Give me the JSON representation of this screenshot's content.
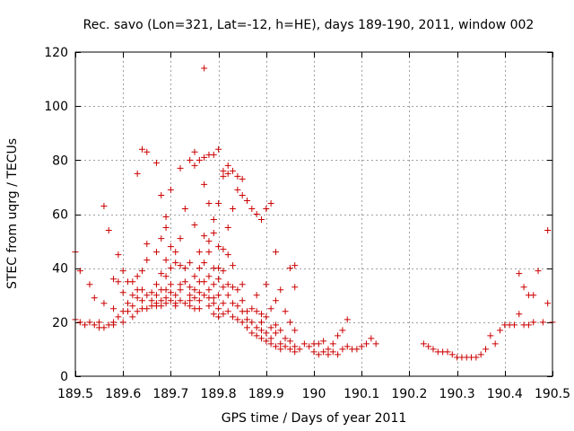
{
  "chart_data": {
    "type": "scatter",
    "title": "Rec. savo (Lon=321, Lat=-12, h=HE), days 189-190, 2011, window 002",
    "xlabel": "GPS time / Days of year 2011",
    "ylabel": "STEC from uqrg / TECUs",
    "xlim": [
      189.5,
      190.5
    ],
    "ylim": [
      0,
      120
    ],
    "xticks": [
      189.5,
      189.6,
      189.7,
      189.8,
      189.9,
      190.0,
      190.1,
      190.2,
      190.3,
      190.4,
      190.5
    ],
    "xtick_labels": [
      "189.5",
      "189.6",
      "189.7",
      "189.8",
      "189.9",
      "190",
      "190.1",
      "190.2",
      "190.3",
      "190.4",
      "190.5"
    ],
    "yticks": [
      0,
      20,
      40,
      60,
      80,
      100,
      120
    ],
    "ytick_labels": [
      "0",
      "20",
      "40",
      "60",
      "80",
      "100",
      "120"
    ],
    "grid": true,
    "marker": "+",
    "color": "#cc0000",
    "series": [
      {
        "name": "STEC",
        "points": [
          [
            189.5,
            46
          ],
          [
            189.5,
            21
          ],
          [
            189.51,
            20
          ],
          [
            189.51,
            39
          ],
          [
            189.52,
            19
          ],
          [
            189.53,
            34
          ],
          [
            189.53,
            20
          ],
          [
            189.54,
            19
          ],
          [
            189.54,
            29
          ],
          [
            189.55,
            18
          ],
          [
            189.55,
            20
          ],
          [
            189.56,
            63
          ],
          [
            189.56,
            18
          ],
          [
            189.56,
            27
          ],
          [
            189.57,
            19
          ],
          [
            189.57,
            54
          ],
          [
            189.58,
            19
          ],
          [
            189.58,
            36
          ],
          [
            189.58,
            25
          ],
          [
            189.58,
            20
          ],
          [
            189.59,
            45
          ],
          [
            189.59,
            35
          ],
          [
            189.59,
            22
          ],
          [
            189.6,
            31
          ],
          [
            189.6,
            24
          ],
          [
            189.6,
            39
          ],
          [
            189.6,
            20
          ],
          [
            189.61,
            35
          ],
          [
            189.61,
            27
          ],
          [
            189.61,
            24
          ],
          [
            189.62,
            35
          ],
          [
            189.62,
            22
          ],
          [
            189.62,
            26
          ],
          [
            189.62,
            30
          ],
          [
            189.63,
            75
          ],
          [
            189.63,
            37
          ],
          [
            189.63,
            29
          ],
          [
            189.63,
            32
          ],
          [
            189.63,
            24
          ],
          [
            189.64,
            84
          ],
          [
            189.64,
            39
          ],
          [
            189.64,
            32
          ],
          [
            189.64,
            28
          ],
          [
            189.64,
            25
          ],
          [
            189.65,
            83
          ],
          [
            189.65,
            30
          ],
          [
            189.65,
            43
          ],
          [
            189.65,
            49
          ],
          [
            189.65,
            25
          ],
          [
            189.66,
            31
          ],
          [
            189.66,
            28
          ],
          [
            189.66,
            26
          ],
          [
            189.67,
            79
          ],
          [
            189.67,
            46
          ],
          [
            189.67,
            34
          ],
          [
            189.67,
            30
          ],
          [
            189.67,
            27
          ],
          [
            189.67,
            26
          ],
          [
            189.68,
            67
          ],
          [
            189.68,
            51
          ],
          [
            189.68,
            38
          ],
          [
            189.68,
            32
          ],
          [
            189.68,
            28
          ],
          [
            189.68,
            26
          ],
          [
            189.69,
            59
          ],
          [
            189.69,
            55
          ],
          [
            189.69,
            43
          ],
          [
            189.69,
            37
          ],
          [
            189.69,
            32
          ],
          [
            189.69,
            29
          ],
          [
            189.69,
            27
          ],
          [
            189.7,
            69
          ],
          [
            189.7,
            48
          ],
          [
            189.7,
            40
          ],
          [
            189.7,
            34
          ],
          [
            189.7,
            31
          ],
          [
            189.7,
            28
          ],
          [
            189.71,
            46
          ],
          [
            189.71,
            42
          ],
          [
            189.71,
            30
          ],
          [
            189.71,
            27
          ],
          [
            189.71,
            26
          ],
          [
            189.72,
            77
          ],
          [
            189.72,
            51
          ],
          [
            189.72,
            41
          ],
          [
            189.72,
            34
          ],
          [
            189.72,
            32
          ],
          [
            189.72,
            28
          ],
          [
            189.73,
            62
          ],
          [
            189.73,
            40
          ],
          [
            189.73,
            35
          ],
          [
            189.73,
            27
          ],
          [
            189.74,
            80
          ],
          [
            189.74,
            42
          ],
          [
            189.74,
            33
          ],
          [
            189.74,
            30
          ],
          [
            189.74,
            28
          ],
          [
            189.74,
            26
          ],
          [
            189.75,
            83
          ],
          [
            189.75,
            78
          ],
          [
            189.75,
            56
          ],
          [
            189.75,
            37
          ],
          [
            189.75,
            32
          ],
          [
            189.75,
            29
          ],
          [
            189.75,
            25
          ],
          [
            189.76,
            80
          ],
          [
            189.76,
            46
          ],
          [
            189.76,
            40
          ],
          [
            189.76,
            35
          ],
          [
            189.76,
            31
          ],
          [
            189.76,
            28
          ],
          [
            189.76,
            25
          ],
          [
            189.77,
            114
          ],
          [
            189.77,
            81
          ],
          [
            189.77,
            71
          ],
          [
            189.77,
            52
          ],
          [
            189.77,
            42
          ],
          [
            189.77,
            35
          ],
          [
            189.77,
            30
          ],
          [
            189.78,
            82
          ],
          [
            189.78,
            64
          ],
          [
            189.78,
            50
          ],
          [
            189.78,
            46
          ],
          [
            189.78,
            37
          ],
          [
            189.78,
            32
          ],
          [
            189.78,
            29
          ],
          [
            189.78,
            26
          ],
          [
            189.79,
            82
          ],
          [
            189.79,
            58
          ],
          [
            189.79,
            53
          ],
          [
            189.79,
            40
          ],
          [
            189.79,
            34
          ],
          [
            189.79,
            29
          ],
          [
            189.79,
            27
          ],
          [
            189.79,
            23
          ],
          [
            189.8,
            84
          ],
          [
            189.8,
            64
          ],
          [
            189.8,
            48
          ],
          [
            189.8,
            40
          ],
          [
            189.8,
            36
          ],
          [
            189.8,
            30
          ],
          [
            189.8,
            25
          ],
          [
            189.8,
            22
          ],
          [
            189.81,
            76
          ],
          [
            189.81,
            74
          ],
          [
            189.81,
            47
          ],
          [
            189.81,
            39
          ],
          [
            189.81,
            33
          ],
          [
            189.81,
            27
          ],
          [
            189.81,
            23
          ],
          [
            189.82,
            78
          ],
          [
            189.82,
            75
          ],
          [
            189.82,
            55
          ],
          [
            189.82,
            45
          ],
          [
            189.82,
            34
          ],
          [
            189.82,
            30
          ],
          [
            189.82,
            24
          ],
          [
            189.83,
            76
          ],
          [
            189.83,
            62
          ],
          [
            189.83,
            41
          ],
          [
            189.83,
            33
          ],
          [
            189.83,
            27
          ],
          [
            189.83,
            22
          ],
          [
            189.84,
            74
          ],
          [
            189.84,
            69
          ],
          [
            189.84,
            32
          ],
          [
            189.84,
            26
          ],
          [
            189.84,
            21
          ],
          [
            189.85,
            73
          ],
          [
            189.85,
            67
          ],
          [
            189.85,
            34
          ],
          [
            189.85,
            28
          ],
          [
            189.85,
            24
          ],
          [
            189.85,
            20
          ],
          [
            189.86,
            65
          ],
          [
            189.86,
            24
          ],
          [
            189.86,
            21
          ],
          [
            189.86,
            18
          ],
          [
            189.87,
            62
          ],
          [
            189.87,
            25
          ],
          [
            189.87,
            20
          ],
          [
            189.87,
            16
          ],
          [
            189.88,
            60
          ],
          [
            189.88,
            30
          ],
          [
            189.88,
            24
          ],
          [
            189.88,
            18
          ],
          [
            189.88,
            15
          ],
          [
            189.89,
            58
          ],
          [
            189.89,
            23
          ],
          [
            189.89,
            20
          ],
          [
            189.89,
            17
          ],
          [
            189.89,
            14
          ],
          [
            189.9,
            62
          ],
          [
            189.9,
            34
          ],
          [
            189.9,
            22
          ],
          [
            189.9,
            16
          ],
          [
            189.9,
            13
          ],
          [
            189.91,
            64
          ],
          [
            189.91,
            25
          ],
          [
            189.91,
            18
          ],
          [
            189.91,
            14
          ],
          [
            189.91,
            12
          ],
          [
            189.92,
            46
          ],
          [
            189.92,
            28
          ],
          [
            189.92,
            19
          ],
          [
            189.92,
            16
          ],
          [
            189.92,
            11
          ],
          [
            189.93,
            32
          ],
          [
            189.93,
            17
          ],
          [
            189.93,
            12
          ],
          [
            189.93,
            10
          ],
          [
            189.94,
            24
          ],
          [
            189.94,
            14
          ],
          [
            189.94,
            11
          ],
          [
            189.95,
            40
          ],
          [
            189.95,
            20
          ],
          [
            189.95,
            13
          ],
          [
            189.95,
            10
          ],
          [
            189.96,
            41
          ],
          [
            189.96,
            33
          ],
          [
            189.96,
            17
          ],
          [
            189.96,
            11
          ],
          [
            189.96,
            9
          ],
          [
            189.97,
            10
          ],
          [
            189.98,
            12
          ],
          [
            189.99,
            11
          ],
          [
            190.0,
            12
          ],
          [
            190.0,
            9
          ],
          [
            190.01,
            12
          ],
          [
            190.01,
            8
          ],
          [
            190.02,
            13
          ],
          [
            190.02,
            9
          ],
          [
            190.03,
            10
          ],
          [
            190.03,
            8
          ],
          [
            190.04,
            12
          ],
          [
            190.04,
            9
          ],
          [
            190.05,
            15
          ],
          [
            190.05,
            8
          ],
          [
            190.06,
            17
          ],
          [
            190.06,
            10
          ],
          [
            190.07,
            21
          ],
          [
            190.07,
            11
          ],
          [
            190.08,
            10
          ],
          [
            190.09,
            10
          ],
          [
            190.1,
            11
          ],
          [
            190.11,
            12
          ],
          [
            190.12,
            14
          ],
          [
            190.13,
            12
          ],
          [
            190.23,
            12
          ],
          [
            190.24,
            11
          ],
          [
            190.25,
            10
          ],
          [
            190.26,
            9
          ],
          [
            190.27,
            9
          ],
          [
            190.28,
            9
          ],
          [
            190.29,
            8
          ],
          [
            190.3,
            7
          ],
          [
            190.31,
            7
          ],
          [
            190.32,
            7
          ],
          [
            190.33,
            7
          ],
          [
            190.34,
            7
          ],
          [
            190.35,
            8
          ],
          [
            190.36,
            10
          ],
          [
            190.37,
            15
          ],
          [
            190.38,
            12
          ],
          [
            190.39,
            17
          ],
          [
            190.4,
            19
          ],
          [
            190.41,
            19
          ],
          [
            190.42,
            19
          ],
          [
            190.43,
            23
          ],
          [
            190.43,
            38
          ],
          [
            190.44,
            19
          ],
          [
            190.44,
            33
          ],
          [
            190.45,
            30
          ],
          [
            190.45,
            19
          ],
          [
            190.46,
            20
          ],
          [
            190.46,
            30
          ],
          [
            190.47,
            39
          ],
          [
            190.48,
            20
          ],
          [
            190.49,
            27
          ],
          [
            190.49,
            54
          ],
          [
            190.5,
            20
          ]
        ]
      }
    ]
  }
}
